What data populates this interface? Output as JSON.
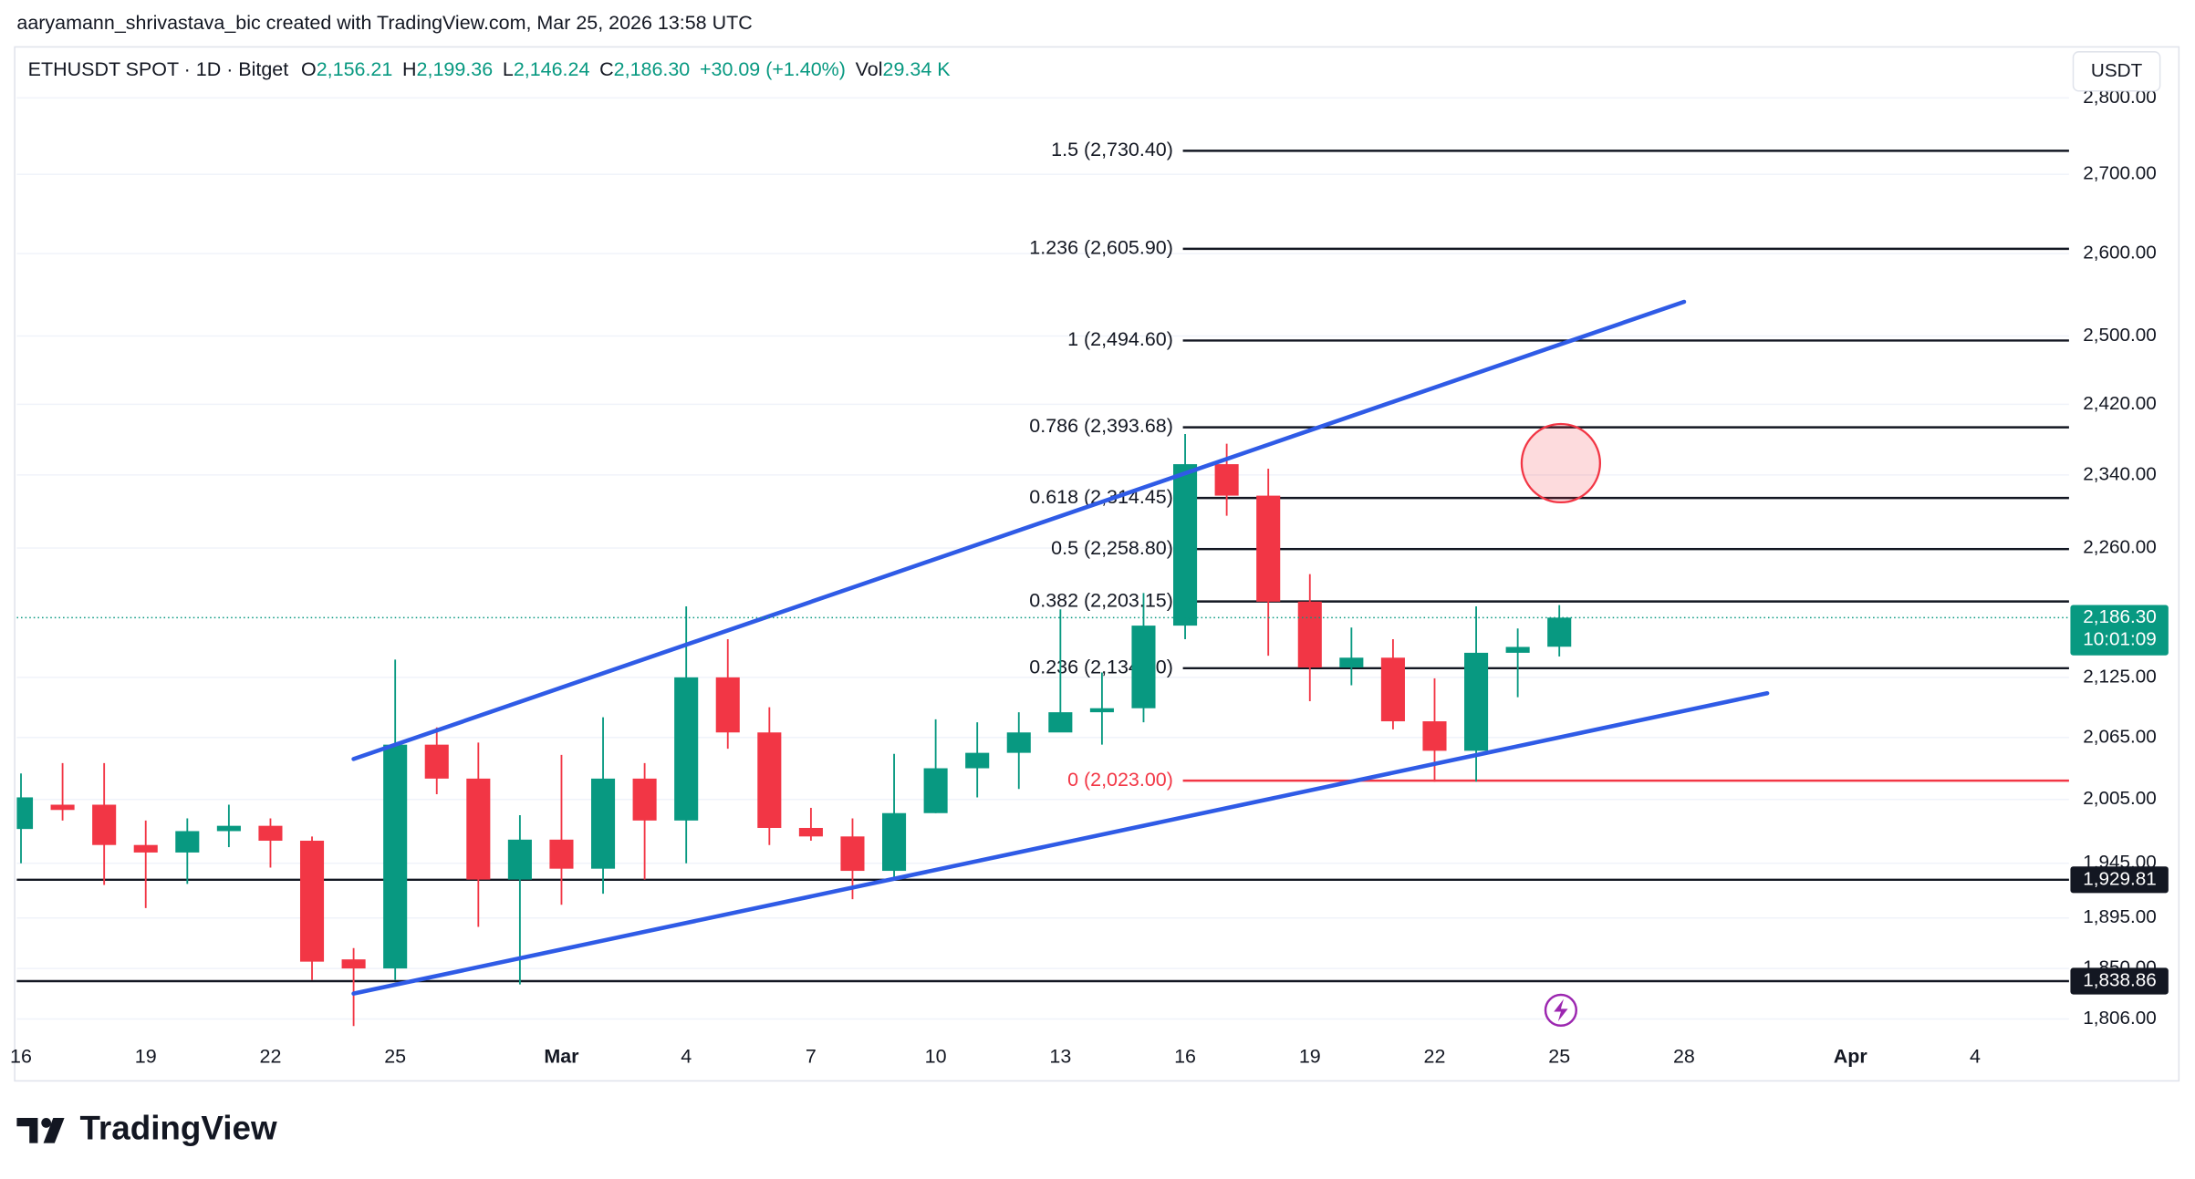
{
  "header": {
    "attribution": "aaryamann_shrivastava_bic created with TradingView.com, Mar 25, 2026 13:58 UTC"
  },
  "legend": {
    "symbol": "ETHUSDT SPOT · 1D · Bitget",
    "items": [
      {
        "key": "O",
        "value": "2,156.21"
      },
      {
        "key": "H",
        "value": "2,199.36"
      },
      {
        "key": "L",
        "value": "2,146.24"
      },
      {
        "key": "C",
        "value": "2,186.30"
      }
    ],
    "change": "+30.09 (+1.40%)",
    "volume_key": "Vol",
    "volume": "29.34 K"
  },
  "currency_button": "USDT",
  "logo": "TradingView",
  "chart_data": {
    "type": "candlestick",
    "categories": [
      "16",
      null,
      null,
      "19",
      null,
      null,
      "22",
      null,
      null,
      "25",
      null,
      null,
      null,
      "Mar",
      null,
      null,
      "4",
      null,
      null,
      "7",
      null,
      null,
      "10",
      null,
      null,
      "13",
      null,
      null,
      "16",
      null,
      null,
      "19",
      null,
      null,
      "22",
      null,
      null,
      "25",
      null,
      null,
      "28",
      null,
      null,
      null,
      "Apr",
      null,
      null,
      "4"
    ],
    "open": [
      1977,
      2000,
      2000,
      1962,
      1955,
      1975,
      1980,
      1966,
      1858,
      1850,
      2058,
      2025,
      1930,
      1967,
      1940,
      2025,
      1985,
      2125,
      2070,
      1978,
      1970,
      1938,
      1992,
      2035,
      2050,
      2070,
      2090,
      2094,
      2178,
      2352,
      2317,
      2203,
      2135,
      2145,
      2081,
      2052,
      2150,
      2156.21,
      null,
      null,
      null,
      null,
      null,
      null,
      null,
      null,
      null,
      null
    ],
    "high": [
      2030,
      2040,
      2040,
      1985,
      1987,
      2000,
      1987,
      1970,
      1868,
      2143,
      2075,
      2060,
      1990,
      2048,
      2085,
      2040,
      2198,
      2164,
      2095,
      1997,
      1987,
      2049,
      2083,
      2080,
      2090,
      2195,
      2130,
      2212,
      2386,
      2375,
      2347,
      2232,
      2176,
      2164,
      2124,
      2198,
      2175,
      2199.36,
      null,
      null,
      null,
      null,
      null,
      null,
      null,
      null,
      null,
      null
    ],
    "low": [
      1945,
      1985,
      1925,
      1904,
      1926,
      1960,
      1941,
      1840,
      1800,
      1840,
      2010,
      1887,
      1836,
      1907,
      1917,
      1930,
      1945,
      2054,
      1962,
      1966,
      1912,
      1931,
      1992,
      2007,
      2015,
      2073,
      2058,
      2080,
      2164,
      2295,
      2147,
      2101,
      2117,
      2073,
      2022,
      2022,
      2105,
      2146.24,
      null,
      null,
      null,
      null,
      null,
      null,
      null,
      null,
      null,
      null
    ],
    "close": [
      2007,
      1995,
      1962,
      1955,
      1975,
      1980,
      1966,
      1856,
      1850,
      2058,
      2025,
      1930,
      1967,
      1940,
      2025,
      1985,
      2125,
      2070,
      1978,
      1970,
      1938,
      1992,
      2035,
      2050,
      2070,
      2090,
      2094,
      2178,
      2352,
      2317,
      2203,
      2135,
      2145,
      2081,
      2052,
      2150,
      2156,
      2186.3,
      null,
      null,
      null,
      null,
      null,
      null,
      null,
      null,
      null,
      null
    ],
    "up_color": "#089981",
    "down_color": "#f23645",
    "log_scale": true,
    "grid": true,
    "ylim": [
      1786,
      2866
    ],
    "yticks": [
      {
        "value": 1806,
        "label": "1,806.00"
      },
      {
        "value": 1850,
        "label": "1,850.00"
      },
      {
        "value": 1895,
        "label": "1,895.00"
      },
      {
        "value": 1945,
        "label": "1,945.00"
      },
      {
        "value": 2005,
        "label": "2,005.00"
      },
      {
        "value": 2065,
        "label": "2,065.00"
      },
      {
        "value": 2125,
        "label": "2,125.00"
      },
      {
        "value": 2260,
        "label": "2,260.00"
      },
      {
        "value": 2340,
        "label": "2,340.00"
      },
      {
        "value": 2420,
        "label": "2,420.00"
      },
      {
        "value": 2500,
        "label": "2,500.00"
      },
      {
        "value": 2600,
        "label": "2,600.00"
      },
      {
        "value": 2700,
        "label": "2,700.00"
      },
      {
        "value": 2800,
        "label": "2,800.00"
      }
    ],
    "last_price": {
      "value": 2186.3,
      "label": "2,186.30",
      "countdown": "10:01:09"
    },
    "price_lines": [
      {
        "value": 1929.81,
        "label": "1,929.81"
      },
      {
        "value": 1838.86,
        "label": "1,838.86"
      }
    ],
    "fib_levels": [
      {
        "value": 2730.4,
        "label": "1.5 (2,730.40)"
      },
      {
        "value": 2605.9,
        "label": "1.236 (2,605.90)"
      },
      {
        "value": 2494.6,
        "label": "1 (2,494.60)"
      },
      {
        "value": 2393.68,
        "label": "0.786 (2,393.68)"
      },
      {
        "value": 2314.45,
        "label": "0.618 (2,314.45)"
      },
      {
        "value": 2258.8,
        "label": "0.5 (2,258.80)"
      },
      {
        "value": 2203.15,
        "label": "0.382 (2,203.15)"
      },
      {
        "value": 2134.3,
        "label": "0.236 (2,134.30)"
      },
      {
        "value": 2023,
        "label": "0 (2,023.00)"
      }
    ],
    "fib_color": "#131722",
    "fib_zero_color": "#f23645",
    "trend_lines": [
      {
        "start": 8,
        "end": 40,
        "values": [
          2044,
          2541
        ]
      },
      {
        "start": 8,
        "end": 42,
        "values": [
          1828,
          2109
        ]
      }
    ],
    "trend_color": "#2f5be6"
  }
}
